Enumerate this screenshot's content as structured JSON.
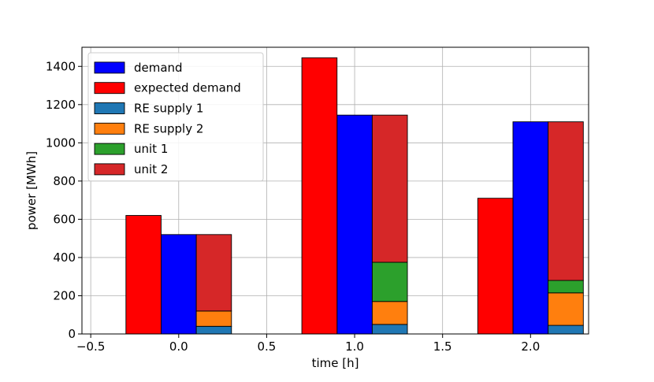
{
  "chart_data": {
    "type": "bar",
    "stacked_groups": true,
    "xlabel": "time [h]",
    "ylabel": "power [MWh]",
    "xlim": [
      -0.55,
      2.33
    ],
    "ylim": [
      0,
      1500
    ],
    "xticks": [
      -0.5,
      0.0,
      0.5,
      1.0,
      1.5,
      2.0
    ],
    "xtick_labels": [
      "−0.5",
      "0.0",
      "0.5",
      "1.0",
      "1.5",
      "2.0"
    ],
    "yticks": [
      0,
      200,
      400,
      600,
      800,
      1000,
      1200,
      1400
    ],
    "ytick_labels": [
      "0",
      "200",
      "400",
      "600",
      "800",
      "1000",
      "1200",
      "1400"
    ],
    "grid": true,
    "legend_position": "top-left",
    "times": [
      0.0,
      1.0,
      2.0
    ],
    "bar_width": 0.2,
    "series": [
      {
        "name": "demand",
        "color": "#0000ff",
        "offset": 0.0,
        "values": [
          520,
          1145,
          1110
        ]
      },
      {
        "name": "expected demand",
        "color": "#ff0000",
        "offset": -0.2,
        "values": [
          620,
          1445,
          710
        ]
      },
      {
        "name": "RE supply 1",
        "color": "#1f77b4",
        "offset": 0.2,
        "stack": "supply",
        "values": [
          40,
          50,
          45
        ]
      },
      {
        "name": "RE supply 2",
        "color": "#ff7f0e",
        "offset": 0.2,
        "stack": "supply",
        "values": [
          80,
          120,
          170
        ]
      },
      {
        "name": "unit 1",
        "color": "#2ca02c",
        "offset": 0.2,
        "stack": "supply",
        "values": [
          0,
          205,
          65
        ]
      },
      {
        "name": "unit 2",
        "color": "#d62728",
        "offset": 0.2,
        "stack": "supply",
        "values": [
          400,
          770,
          830
        ]
      }
    ]
  }
}
